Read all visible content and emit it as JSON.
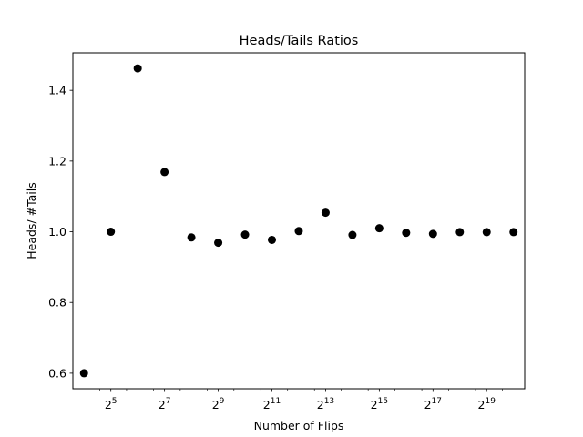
{
  "chart_data": {
    "type": "scatter",
    "title": "Heads/Tails Ratios",
    "xlabel": "Number of Flips",
    "ylabel": "Heads/ #Tails",
    "x_scale": "log2",
    "x": [
      16,
      32,
      64,
      128,
      256,
      512,
      1024,
      2048,
      4096,
      8192,
      16384,
      32768,
      65536,
      131072,
      262144,
      524288,
      1048576
    ],
    "y": [
      0.6,
      1.0,
      1.462,
      1.169,
      0.984,
      0.969,
      0.992,
      0.977,
      1.002,
      1.054,
      0.991,
      1.01,
      0.997,
      0.994,
      0.999,
      0.999,
      0.999
    ],
    "xlim": [
      12,
      1400000
    ],
    "ylim": [
      0.556,
      1.506
    ],
    "x_ticks": [
      {
        "value": 32,
        "base": "2",
        "exp": "5"
      },
      {
        "value": 128,
        "base": "2",
        "exp": "7"
      },
      {
        "value": 512,
        "base": "2",
        "exp": "9"
      },
      {
        "value": 2048,
        "base": "2",
        "exp": "11"
      },
      {
        "value": 8192,
        "base": "2",
        "exp": "13"
      },
      {
        "value": 32768,
        "base": "2",
        "exp": "15"
      },
      {
        "value": 131072,
        "base": "2",
        "exp": "17"
      },
      {
        "value": 524288,
        "base": "2",
        "exp": "19"
      }
    ],
    "y_ticks": [
      {
        "value": 0.6,
        "label": "0.6"
      },
      {
        "value": 0.8,
        "label": "0.8"
      },
      {
        "value": 1.0,
        "label": "1.0"
      },
      {
        "value": 1.2,
        "label": "1.2"
      },
      {
        "value": 1.4,
        "label": "1.4"
      }
    ],
    "marker_color": "#000000",
    "grid": false,
    "legend": "none"
  }
}
